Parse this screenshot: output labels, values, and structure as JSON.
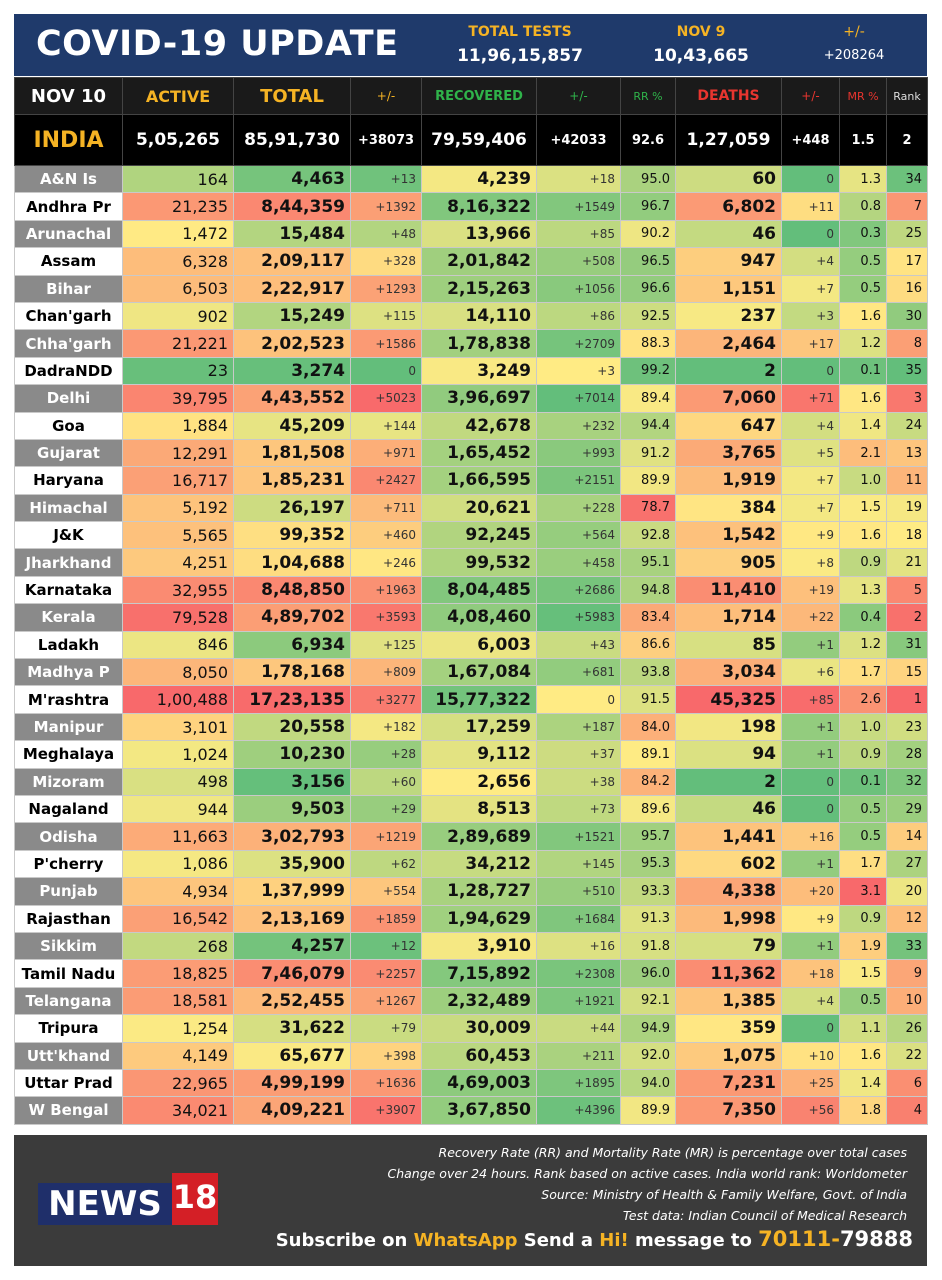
{
  "header": {
    "title": "COVID-19 UPDATE",
    "total_tests_label": "TOTAL TESTS",
    "total_tests_value": "11,96,15,857",
    "prev_date_label": "NOV 9",
    "prev_date_value": "10,43,665",
    "change_label": "+/-",
    "change_value": "+208264"
  },
  "columns": {
    "date": "NOV 10",
    "active": "ACTIVE",
    "total": "TOTAL",
    "pm1": "+/-",
    "recovered": "RECOVERED",
    "pm2": "+/-",
    "rr": "RR %",
    "deaths": "DEATHS",
    "pm3": "+/-",
    "mr": "MR %",
    "rank": "Rank"
  },
  "india": {
    "name": "INDIA",
    "active": "5,05,265",
    "total": "85,91,730",
    "total_change": "+38073",
    "recovered": "79,59,406",
    "recovered_change": "+42033",
    "rr": "92.6",
    "deaths": "1,27,059",
    "deaths_change": "+448",
    "mr": "1.5",
    "rank": "2"
  },
  "states": [
    {
      "name": "A&N Is",
      "active": "164",
      "total": "4,463",
      "tc": "+13",
      "rec": "4,239",
      "rc": "+18",
      "rr": "95.0",
      "deaths": "60",
      "dc": "0",
      "mr": "1.3",
      "rank": "34"
    },
    {
      "name": "Andhra Pr",
      "active": "21,235",
      "total": "8,44,359",
      "tc": "+1392",
      "rec": "8,16,322",
      "rc": "+1549",
      "rr": "96.7",
      "deaths": "6,802",
      "dc": "+11",
      "mr": "0.8",
      "rank": "7"
    },
    {
      "name": "Arunachal",
      "active": "1,472",
      "total": "15,484",
      "tc": "+48",
      "rec": "13,966",
      "rc": "+85",
      "rr": "90.2",
      "deaths": "46",
      "dc": "0",
      "mr": "0.3",
      "rank": "25"
    },
    {
      "name": "Assam",
      "active": "6,328",
      "total": "2,09,117",
      "tc": "+328",
      "rec": "2,01,842",
      "rc": "+508",
      "rr": "96.5",
      "deaths": "947",
      "dc": "+4",
      "mr": "0.5",
      "rank": "17"
    },
    {
      "name": "Bihar",
      "active": "6,503",
      "total": "2,22,917",
      "tc": "+1293",
      "rec": "2,15,263",
      "rc": "+1056",
      "rr": "96.6",
      "deaths": "1,151",
      "dc": "+7",
      "mr": "0.5",
      "rank": "16"
    },
    {
      "name": "Chan'garh",
      "active": "902",
      "total": "15,249",
      "tc": "+115",
      "rec": "14,110",
      "rc": "+86",
      "rr": "92.5",
      "deaths": "237",
      "dc": "+3",
      "mr": "1.6",
      "rank": "30"
    },
    {
      "name": "Chha'garh",
      "active": "21,221",
      "total": "2,02,523",
      "tc": "+1586",
      "rec": "1,78,838",
      "rc": "+2709",
      "rr": "88.3",
      "deaths": "2,464",
      "dc": "+17",
      "mr": "1.2",
      "rank": "8"
    },
    {
      "name": "DadraNDD",
      "active": "23",
      "total": "3,274",
      "tc": "0",
      "rec": "3,249",
      "rc": "+3",
      "rr": "99.2",
      "deaths": "2",
      "dc": "0",
      "mr": "0.1",
      "rank": "35"
    },
    {
      "name": "Delhi",
      "active": "39,795",
      "total": "4,43,552",
      "tc": "+5023",
      "rec": "3,96,697",
      "rc": "+7014",
      "rr": "89.4",
      "deaths": "7,060",
      "dc": "+71",
      "mr": "1.6",
      "rank": "3"
    },
    {
      "name": "Goa",
      "active": "1,884",
      "total": "45,209",
      "tc": "+144",
      "rec": "42,678",
      "rc": "+232",
      "rr": "94.4",
      "deaths": "647",
      "dc": "+4",
      "mr": "1.4",
      "rank": "24"
    },
    {
      "name": "Gujarat",
      "active": "12,291",
      "total": "1,81,508",
      "tc": "+971",
      "rec": "1,65,452",
      "rc": "+993",
      "rr": "91.2",
      "deaths": "3,765",
      "dc": "+5",
      "mr": "2.1",
      "rank": "13"
    },
    {
      "name": "Haryana",
      "active": "16,717",
      "total": "1,85,231",
      "tc": "+2427",
      "rec": "1,66,595",
      "rc": "+2151",
      "rr": "89.9",
      "deaths": "1,919",
      "dc": "+7",
      "mr": "1.0",
      "rank": "11"
    },
    {
      "name": "Himachal",
      "active": "5,192",
      "total": "26,197",
      "tc": "+711",
      "rec": "20,621",
      "rc": "+228",
      "rr": "78.7",
      "deaths": "384",
      "dc": "+7",
      "mr": "1.5",
      "rank": "19"
    },
    {
      "name": "J&K",
      "active": "5,565",
      "total": "99,352",
      "tc": "+460",
      "rec": "92,245",
      "rc": "+564",
      "rr": "92.8",
      "deaths": "1,542",
      "dc": "+9",
      "mr": "1.6",
      "rank": "18"
    },
    {
      "name": "Jharkhand",
      "active": "4,251",
      "total": "1,04,688",
      "tc": "+246",
      "rec": "99,532",
      "rc": "+458",
      "rr": "95.1",
      "deaths": "905",
      "dc": "+8",
      "mr": "0.9",
      "rank": "21"
    },
    {
      "name": "Karnataka",
      "active": "32,955",
      "total": "8,48,850",
      "tc": "+1963",
      "rec": "8,04,485",
      "rc": "+2686",
      "rr": "94.8",
      "deaths": "11,410",
      "dc": "+19",
      "mr": "1.3",
      "rank": "5"
    },
    {
      "name": "Kerala",
      "active": "79,528",
      "total": "4,89,702",
      "tc": "+3593",
      "rec": "4,08,460",
      "rc": "+5983",
      "rr": "83.4",
      "deaths": "1,714",
      "dc": "+22",
      "mr": "0.4",
      "rank": "2"
    },
    {
      "name": "Ladakh",
      "active": "846",
      "total": "6,934",
      "tc": "+125",
      "rec": "6,003",
      "rc": "+43",
      "rr": "86.6",
      "deaths": "85",
      "dc": "+1",
      "mr": "1.2",
      "rank": "31"
    },
    {
      "name": "Madhya P",
      "active": "8,050",
      "total": "1,78,168",
      "tc": "+809",
      "rec": "1,67,084",
      "rc": "+681",
      "rr": "93.8",
      "deaths": "3,034",
      "dc": "+6",
      "mr": "1.7",
      "rank": "15"
    },
    {
      "name": "M'rashtra",
      "active": "1,00,488",
      "total": "17,23,135",
      "tc": "+3277",
      "rec": "15,77,322",
      "rc": "0",
      "rr": "91.5",
      "deaths": "45,325",
      "dc": "+85",
      "mr": "2.6",
      "rank": "1"
    },
    {
      "name": "Manipur",
      "active": "3,101",
      "total": "20,558",
      "tc": "+182",
      "rec": "17,259",
      "rc": "+187",
      "rr": "84.0",
      "deaths": "198",
      "dc": "+1",
      "mr": "1.0",
      "rank": "23"
    },
    {
      "name": "Meghalaya",
      "active": "1,024",
      "total": "10,230",
      "tc": "+28",
      "rec": "9,112",
      "rc": "+37",
      "rr": "89.1",
      "deaths": "94",
      "dc": "+1",
      "mr": "0.9",
      "rank": "28"
    },
    {
      "name": "Mizoram",
      "active": "498",
      "total": "3,156",
      "tc": "+60",
      "rec": "2,656",
      "rc": "+38",
      "rr": "84.2",
      "deaths": "2",
      "dc": "0",
      "mr": "0.1",
      "rank": "32"
    },
    {
      "name": "Nagaland",
      "active": "944",
      "total": "9,503",
      "tc": "+29",
      "rec": "8,513",
      "rc": "+73",
      "rr": "89.6",
      "deaths": "46",
      "dc": "0",
      "mr": "0.5",
      "rank": "29"
    },
    {
      "name": "Odisha",
      "active": "11,663",
      "total": "3,02,793",
      "tc": "+1219",
      "rec": "2,89,689",
      "rc": "+1521",
      "rr": "95.7",
      "deaths": "1,441",
      "dc": "+16",
      "mr": "0.5",
      "rank": "14"
    },
    {
      "name": "P'cherry",
      "active": "1,086",
      "total": "35,900",
      "tc": "+62",
      "rec": "34,212",
      "rc": "+145",
      "rr": "95.3",
      "deaths": "602",
      "dc": "+1",
      "mr": "1.7",
      "rank": "27"
    },
    {
      "name": "Punjab",
      "active": "4,934",
      "total": "1,37,999",
      "tc": "+554",
      "rec": "1,28,727",
      "rc": "+510",
      "rr": "93.3",
      "deaths": "4,338",
      "dc": "+20",
      "mr": "3.1",
      "rank": "20"
    },
    {
      "name": "Rajasthan",
      "active": "16,542",
      "total": "2,13,169",
      "tc": "+1859",
      "rec": "1,94,629",
      "rc": "+1684",
      "rr": "91.3",
      "deaths": "1,998",
      "dc": "+9",
      "mr": "0.9",
      "rank": "12"
    },
    {
      "name": "Sikkim",
      "active": "268",
      "total": "4,257",
      "tc": "+12",
      "rec": "3,910",
      "rc": "+16",
      "rr": "91.8",
      "deaths": "79",
      "dc": "+1",
      "mr": "1.9",
      "rank": "33"
    },
    {
      "name": "Tamil Nadu",
      "active": "18,825",
      "total": "7,46,079",
      "tc": "+2257",
      "rec": "7,15,892",
      "rc": "+2308",
      "rr": "96.0",
      "deaths": "11,362",
      "dc": "+18",
      "mr": "1.5",
      "rank": "9"
    },
    {
      "name": "Telangana",
      "active": "18,581",
      "total": "2,52,455",
      "tc": "+1267",
      "rec": "2,32,489",
      "rc": "+1921",
      "rr": "92.1",
      "deaths": "1,385",
      "dc": "+4",
      "mr": "0.5",
      "rank": "10"
    },
    {
      "name": "Tripura",
      "active": "1,254",
      "total": "31,622",
      "tc": "+79",
      "rec": "30,009",
      "rc": "+44",
      "rr": "94.9",
      "deaths": "359",
      "dc": "0",
      "mr": "1.1",
      "rank": "26"
    },
    {
      "name": "Utt'khand",
      "active": "4,149",
      "total": "65,677",
      "tc": "+398",
      "rec": "60,453",
      "rc": "+211",
      "rr": "92.0",
      "deaths": "1,075",
      "dc": "+10",
      "mr": "1.6",
      "rank": "22"
    },
    {
      "name": "Uttar Prad",
      "active": "22,965",
      "total": "4,99,199",
      "tc": "+1636",
      "rec": "4,69,003",
      "rc": "+1895",
      "rr": "94.0",
      "deaths": "7,231",
      "dc": "+25",
      "mr": "1.4",
      "rank": "6"
    },
    {
      "name": "W Bengal",
      "active": "34,021",
      "total": "4,09,221",
      "tc": "+3907",
      "rec": "3,67,850",
      "rc": "+4396",
      "rr": "89.9",
      "deaths": "7,350",
      "dc": "+56",
      "mr": "1.8",
      "rank": "4"
    }
  ],
  "footer": {
    "note1": "Recovery Rate (RR) and Mortality Rate (MR) is percentage over total cases",
    "note2": "Change over 24 hours. Rank based on active cases. India world rank: Worldometer",
    "note3": "Source: Ministry of Health & Family Welfare, Govt. of India",
    "note4": "Test data: Indian Council of Medical Research",
    "logo_word": "NEWS",
    "logo_num": "18",
    "sub_a": "Subscribe on ",
    "sub_b": "WhatsApp",
    "sub_c": " Send a ",
    "sub_d": "Hi!",
    "sub_e": " message to ",
    "sub_f": "70111-",
    "sub_g": "79888"
  },
  "colors": {
    "header_bg": "#1f3a6b",
    "accent_yellow": "#f5b324",
    "green_label": "#2fb34a",
    "red_label": "#e8352f",
    "footer_bg": "#3b3b3b"
  }
}
